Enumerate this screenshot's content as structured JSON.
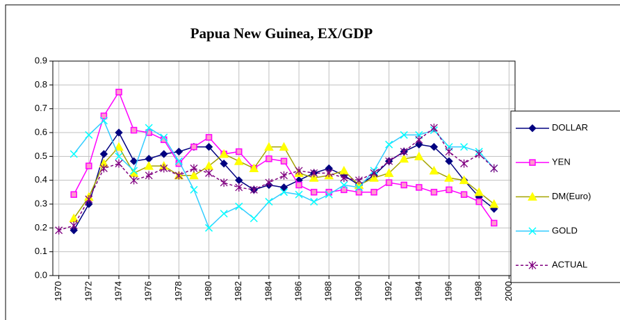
{
  "chart_data": {
    "type": "line",
    "title": "Papua New Guinea, EX/GDP",
    "x": [
      1970,
      1971,
      1972,
      1973,
      1974,
      1975,
      1976,
      1977,
      1978,
      1979,
      1980,
      1981,
      1982,
      1983,
      1984,
      1985,
      1986,
      1987,
      1988,
      1989,
      1990,
      1991,
      1992,
      1993,
      1994,
      1995,
      1996,
      1997,
      1998,
      1999
    ],
    "series": [
      {
        "name": "DOLLAR",
        "color": "#000080",
        "marker_color": "#000080",
        "marker": "diamond",
        "values": [
          null,
          0.19,
          0.3,
          0.51,
          0.6,
          0.48,
          0.49,
          0.51,
          0.52,
          0.54,
          0.54,
          0.47,
          0.4,
          0.36,
          0.38,
          0.37,
          0.4,
          0.43,
          0.45,
          0.42,
          0.38,
          0.42,
          0.48,
          0.52,
          0.55,
          0.54,
          0.48,
          0.4,
          0.33,
          0.28
        ]
      },
      {
        "name": "YEN",
        "color": "#ff00ff",
        "marker_color": "#ff99cc",
        "marker": "square",
        "values": [
          null,
          0.34,
          0.46,
          0.67,
          0.77,
          0.61,
          0.6,
          0.57,
          0.47,
          0.54,
          0.58,
          0.51,
          0.52,
          0.45,
          0.49,
          0.48,
          0.38,
          0.35,
          0.35,
          0.36,
          0.35,
          0.35,
          0.39,
          0.38,
          0.37,
          0.35,
          0.36,
          0.34,
          0.31,
          0.22
        ]
      },
      {
        "name": "DM(Euro)",
        "color": "#a3a300",
        "marker_color": "#ffff00",
        "marker": "triangle",
        "values": [
          null,
          0.24,
          0.33,
          0.47,
          0.54,
          0.43,
          0.46,
          0.46,
          0.42,
          0.42,
          0.46,
          0.51,
          0.48,
          0.45,
          0.54,
          0.54,
          0.43,
          0.41,
          0.42,
          0.44,
          0.38,
          0.41,
          0.43,
          0.49,
          0.5,
          0.44,
          0.41,
          0.4,
          0.35,
          0.3
        ]
      },
      {
        "name": "GOLD",
        "color": "#33ccff",
        "marker_color": "#00ffff",
        "marker": "x",
        "values": [
          null,
          0.51,
          0.59,
          0.65,
          0.5,
          0.44,
          0.62,
          0.58,
          0.48,
          0.36,
          0.2,
          0.26,
          0.29,
          0.24,
          0.31,
          0.35,
          0.34,
          0.31,
          0.34,
          0.38,
          0.37,
          0.44,
          0.55,
          0.59,
          0.59,
          0.61,
          0.54,
          0.54,
          0.52,
          0.45
        ]
      },
      {
        "name": "ACTUAL",
        "color": "#800080",
        "marker_color": "#800080",
        "marker": "star",
        "dashed": true,
        "values": [
          0.19,
          0.21,
          0.32,
          0.45,
          0.47,
          0.4,
          0.42,
          0.45,
          0.42,
          0.45,
          0.43,
          0.39,
          0.37,
          0.36,
          0.39,
          0.42,
          0.44,
          0.43,
          0.43,
          0.41,
          0.4,
          0.43,
          0.48,
          0.52,
          0.57,
          0.62,
          0.52,
          0.47,
          0.51,
          0.45
        ]
      }
    ],
    "xlim": [
      1969.6,
      2000.4
    ],
    "xticks": [
      1970,
      1972,
      1974,
      1976,
      1978,
      1980,
      1982,
      1984,
      1986,
      1988,
      1990,
      1992,
      1994,
      1996,
      1998,
      2000
    ],
    "ylim": [
      0,
      0.9
    ],
    "yticks": [
      {
        "value": 0,
        "label": "0.0"
      },
      0.1,
      0.2,
      0.3,
      0.4,
      0.5,
      0.6,
      0.7,
      0.8,
      0.9
    ],
    "grid": true,
    "legend": "right"
  }
}
